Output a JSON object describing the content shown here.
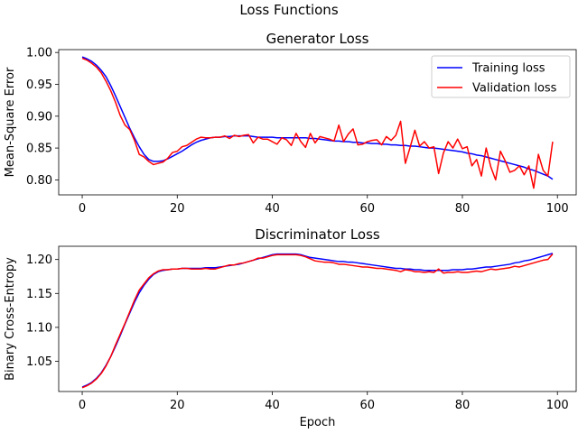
{
  "figure": {
    "suptitle": "Loss Functions"
  },
  "chart_data": [
    {
      "type": "line",
      "title": "Generator Loss",
      "xlabel": "",
      "ylabel": "Mean-Square Error",
      "xlim": [
        -4.95,
        103.95
      ],
      "ylim": [
        0.7765,
        1.0045
      ],
      "xticks": [
        0,
        20,
        40,
        60,
        80,
        100
      ],
      "yticks": [
        0.8,
        0.85,
        0.9,
        0.95,
        1.0
      ],
      "ytick_labels": [
        "0.80",
        "0.85",
        "0.90",
        "0.95",
        "1.00"
      ],
      "legend": {
        "placement": "top-right"
      },
      "series": [
        {
          "name": "Training loss",
          "color": "#0000ff",
          "x_start": 0,
          "values": [
            0.993,
            0.99,
            0.986,
            0.98,
            0.972,
            0.962,
            0.948,
            0.932,
            0.915,
            0.898,
            0.881,
            0.866,
            0.852,
            0.84,
            0.832,
            0.829,
            0.829,
            0.83,
            0.833,
            0.837,
            0.841,
            0.845,
            0.85,
            0.855,
            0.859,
            0.862,
            0.864,
            0.866,
            0.867,
            0.867,
            0.868,
            0.868,
            0.869,
            0.869,
            0.869,
            0.869,
            0.868,
            0.867,
            0.867,
            0.867,
            0.867,
            0.866,
            0.866,
            0.866,
            0.866,
            0.866,
            0.866,
            0.866,
            0.865,
            0.865,
            0.864,
            0.863,
            0.862,
            0.861,
            0.861,
            0.86,
            0.86,
            0.859,
            0.859,
            0.858,
            0.858,
            0.857,
            0.857,
            0.856,
            0.856,
            0.855,
            0.855,
            0.854,
            0.854,
            0.853,
            0.853,
            0.852,
            0.851,
            0.85,
            0.85,
            0.849,
            0.848,
            0.847,
            0.846,
            0.845,
            0.844,
            0.842,
            0.841,
            0.839,
            0.838,
            0.836,
            0.834,
            0.832,
            0.83,
            0.828,
            0.826,
            0.824,
            0.822,
            0.82,
            0.817,
            0.815,
            0.812,
            0.809,
            0.806,
            0.801
          ]
        },
        {
          "name": "Validation loss",
          "color": "#ff0000",
          "x_start": 0,
          "values": [
            0.991,
            0.988,
            0.983,
            0.977,
            0.968,
            0.955,
            0.94,
            0.922,
            0.901,
            0.886,
            0.879,
            0.862,
            0.84,
            0.836,
            0.829,
            0.824,
            0.826,
            0.828,
            0.834,
            0.843,
            0.845,
            0.852,
            0.854,
            0.859,
            0.864,
            0.867,
            0.866,
            0.866,
            0.867,
            0.867,
            0.869,
            0.865,
            0.87,
            0.868,
            0.87,
            0.871,
            0.858,
            0.867,
            0.864,
            0.864,
            0.86,
            0.856,
            0.866,
            0.863,
            0.854,
            0.873,
            0.86,
            0.851,
            0.873,
            0.858,
            0.868,
            0.866,
            0.864,
            0.861,
            0.886,
            0.86,
            0.872,
            0.88,
            0.855,
            0.856,
            0.86,
            0.862,
            0.863,
            0.855,
            0.868,
            0.862,
            0.87,
            0.892,
            0.826,
            0.851,
            0.878,
            0.853,
            0.86,
            0.85,
            0.852,
            0.81,
            0.842,
            0.86,
            0.85,
            0.864,
            0.849,
            0.852,
            0.822,
            0.832,
            0.806,
            0.85,
            0.82,
            0.8,
            0.845,
            0.83,
            0.812,
            0.815,
            0.822,
            0.808,
            0.822,
            0.787,
            0.84,
            0.815,
            0.806,
            0.86
          ]
        }
      ]
    },
    {
      "type": "line",
      "title": "Discriminator Loss",
      "xlabel": "Epoch",
      "ylabel": "Binary Cross-Entropy",
      "xlim": [
        -4.95,
        103.95
      ],
      "ylim": [
        1.0055,
        1.2195
      ],
      "xticks": [
        0,
        20,
        40,
        60,
        80,
        100
      ],
      "yticks": [
        1.05,
        1.1,
        1.15,
        1.2
      ],
      "ytick_labels": [
        "1.05",
        "1.10",
        "1.15",
        "1.20"
      ],
      "series": [
        {
          "name": "Training loss",
          "color": "#0000ff",
          "x_start": 0,
          "values": [
            1.012,
            1.015,
            1.019,
            1.025,
            1.033,
            1.044,
            1.057,
            1.072,
            1.088,
            1.105,
            1.121,
            1.137,
            1.151,
            1.162,
            1.171,
            1.178,
            1.182,
            1.184,
            1.185,
            1.186,
            1.186,
            1.187,
            1.187,
            1.187,
            1.187,
            1.187,
            1.188,
            1.188,
            1.188,
            1.189,
            1.19,
            1.191,
            1.192,
            1.193,
            1.195,
            1.197,
            1.199,
            1.201,
            1.203,
            1.205,
            1.207,
            1.208,
            1.208,
            1.208,
            1.208,
            1.208,
            1.207,
            1.205,
            1.203,
            1.202,
            1.201,
            1.2,
            1.199,
            1.198,
            1.197,
            1.197,
            1.196,
            1.196,
            1.195,
            1.194,
            1.193,
            1.192,
            1.191,
            1.19,
            1.189,
            1.188,
            1.187,
            1.187,
            1.186,
            1.186,
            1.185,
            1.185,
            1.184,
            1.184,
            1.184,
            1.184,
            1.184,
            1.184,
            1.185,
            1.185,
            1.185,
            1.186,
            1.186,
            1.187,
            1.188,
            1.189,
            1.189,
            1.19,
            1.191,
            1.192,
            1.193,
            1.195,
            1.196,
            1.198,
            1.199,
            1.201,
            1.203,
            1.205,
            1.207,
            1.209
          ]
        },
        {
          "name": "Validation loss",
          "color": "#ff0000",
          "x_start": 0,
          "values": [
            1.011,
            1.014,
            1.018,
            1.024,
            1.032,
            1.043,
            1.057,
            1.074,
            1.09,
            1.106,
            1.123,
            1.14,
            1.155,
            1.164,
            1.173,
            1.179,
            1.183,
            1.185,
            1.185,
            1.186,
            1.186,
            1.187,
            1.187,
            1.186,
            1.186,
            1.186,
            1.187,
            1.186,
            1.186,
            1.188,
            1.19,
            1.192,
            1.192,
            1.194,
            1.195,
            1.197,
            1.199,
            1.202,
            1.202,
            1.204,
            1.206,
            1.207,
            1.207,
            1.207,
            1.207,
            1.207,
            1.206,
            1.204,
            1.201,
            1.198,
            1.197,
            1.196,
            1.196,
            1.195,
            1.193,
            1.193,
            1.192,
            1.191,
            1.19,
            1.189,
            1.189,
            1.188,
            1.187,
            1.187,
            1.186,
            1.185,
            1.184,
            1.182,
            1.185,
            1.184,
            1.182,
            1.182,
            1.181,
            1.182,
            1.181,
            1.186,
            1.18,
            1.181,
            1.181,
            1.182,
            1.181,
            1.181,
            1.182,
            1.183,
            1.182,
            1.184,
            1.186,
            1.185,
            1.186,
            1.187,
            1.188,
            1.19,
            1.189,
            1.191,
            1.193,
            1.195,
            1.197,
            1.199,
            1.2,
            1.208
          ]
        }
      ]
    }
  ]
}
